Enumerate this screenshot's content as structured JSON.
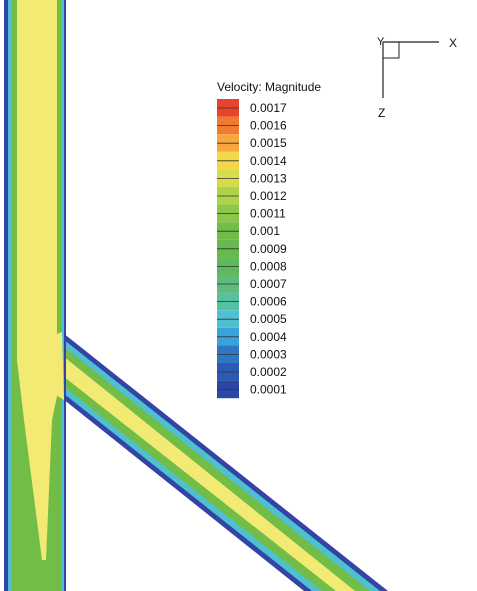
{
  "legend": {
    "title": "Velocity: Magnitude",
    "entries": [
      {
        "label": "0.0017",
        "color": "#e8432d"
      },
      {
        "label": "0.0016",
        "color": "#f07a30"
      },
      {
        "label": "0.0015",
        "color": "#f6a63c"
      },
      {
        "label": "0.0014",
        "color": "#f3d94a"
      },
      {
        "label": "0.0013",
        "color": "#d6dd4c"
      },
      {
        "label": "0.0012",
        "color": "#aed24a"
      },
      {
        "label": "0.0011",
        "color": "#8cc64a"
      },
      {
        "label": "0.001",
        "color": "#72bd48"
      },
      {
        "label": "0.0009",
        "color": "#66b94c"
      },
      {
        "label": "0.0008",
        "color": "#5fb85c"
      },
      {
        "label": "0.0007",
        "color": "#5dbb7b"
      },
      {
        "label": "0.0006",
        "color": "#57c0a0"
      },
      {
        "label": "0.0005",
        "color": "#4fc0cf"
      },
      {
        "label": "0.0004",
        "color": "#3ba2dc"
      },
      {
        "label": "0.0003",
        "color": "#2d77c4"
      },
      {
        "label": "0.0002",
        "color": "#2b5bb4"
      },
      {
        "label": "0.0001",
        "color": "#2b47a3"
      }
    ]
  },
  "axes": {
    "x_label": "X",
    "y_label": "Y",
    "z_label": "Z"
  },
  "colors": {
    "wall": "#3344a6",
    "near_wall": "#4fc0cf",
    "mid": "#72bd48",
    "core": "#f2ea72",
    "axis": "#222222"
  }
}
